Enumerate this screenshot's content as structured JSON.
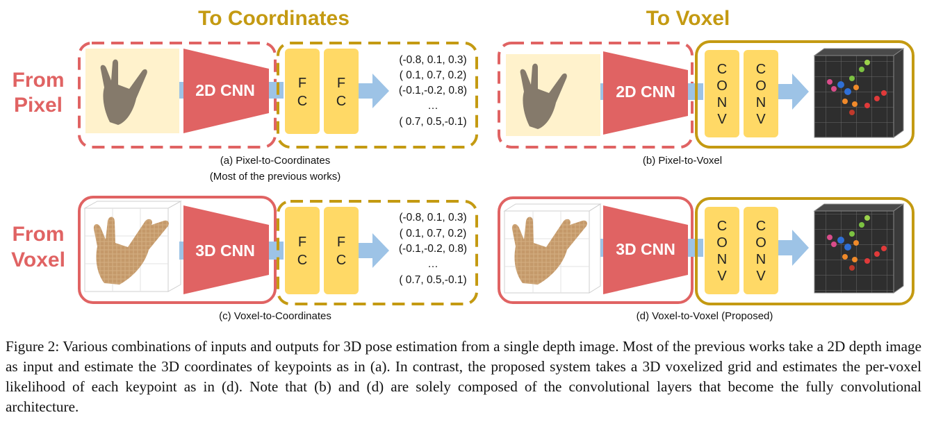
{
  "column_titles": {
    "coordinates": "To Coordinates",
    "voxel": "To Voxel"
  },
  "row_titles": {
    "pixel": [
      "From",
      "Pixel"
    ],
    "voxel": [
      "From",
      "Voxel"
    ]
  },
  "cnn_labels": {
    "cnn2d": "2D CNN",
    "cnn3d": "3D CNN"
  },
  "fc_label": [
    "F",
    "C"
  ],
  "conv_label": [
    "C",
    "O",
    "N",
    "V"
  ],
  "coordinates": [
    "(-0.8, 0.1, 0.3)",
    "( 0.1, 0.7, 0.2)",
    "(-0.1,-0.2, 0.8)",
    "…",
    "( 0.7, 0.5,-0.1)"
  ],
  "subcaptions": {
    "a": [
      "(a) Pixel-to-Coordinates",
      "(Most of the previous works)"
    ],
    "b": "(b) Pixel-to-Voxel",
    "c": "(c) Voxel-to-Coordinates",
    "d": "(d) Voxel-to-Voxel (Proposed)"
  },
  "figure_caption": "Figure 2: Various combinations of inputs and outputs for 3D pose estimation from a single depth image. Most of the previous works take a 2D depth image as input and estimate the 3D coordinates of keypoints as in (a). In contrast, the proposed system takes a 3D voxelized grid and estimates the per-voxel likelihood of each keypoint as in (d). Note that (b) and (d) are solely composed of the convolutional layers that become the fully convolutional architecture.",
  "colors": {
    "red_border": "#e06363",
    "gold_border": "#c49a12",
    "fc_fill": "#ffd966",
    "arrow": "#9dc3e6",
    "depth_bg": "#fff2cc"
  }
}
